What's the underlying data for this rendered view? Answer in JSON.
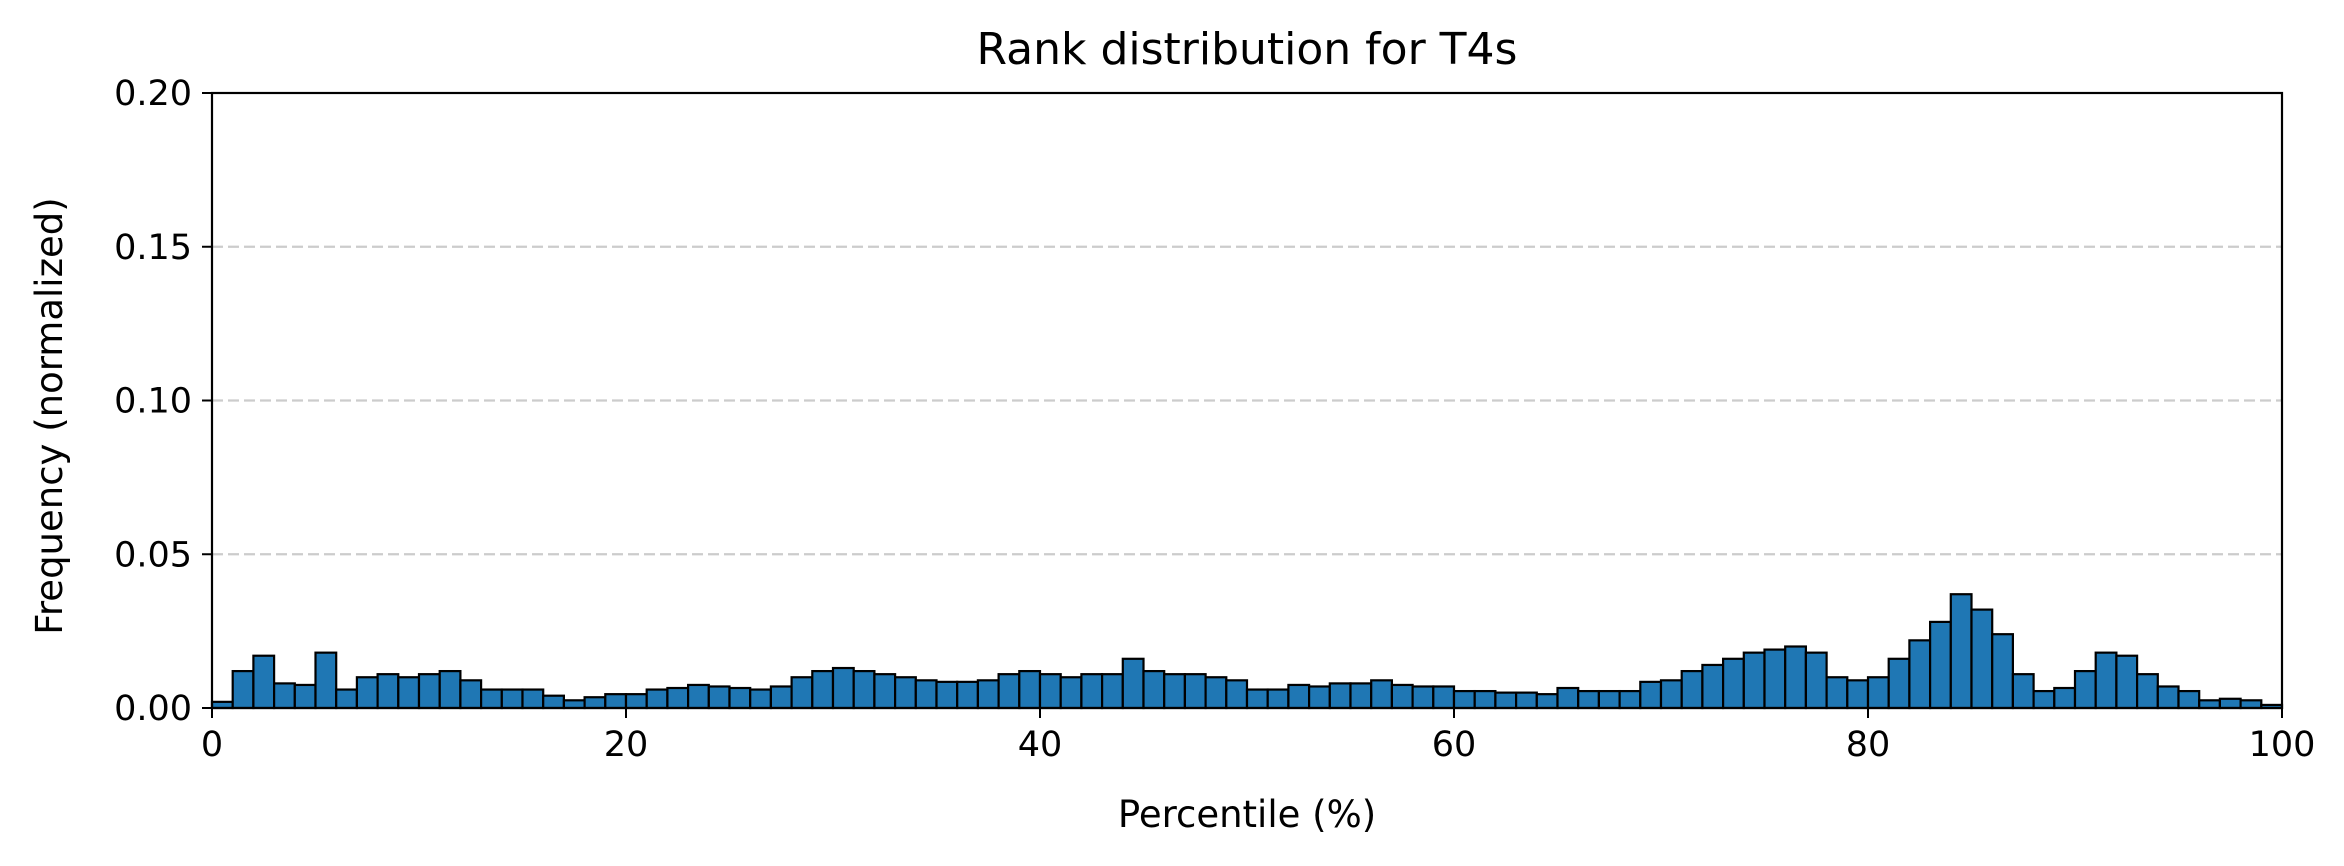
{
  "chart_data": {
    "type": "bar",
    "title": "Rank distribution for T4s",
    "xlabel": "Percentile (%)",
    "ylabel": "Frequency (normalized)",
    "xlim": [
      0,
      100
    ],
    "ylim": [
      0,
      0.2
    ],
    "x_ticks": [
      0,
      20,
      40,
      60,
      80,
      100
    ],
    "x_tick_labels": [
      "0",
      "20",
      "40",
      "60",
      "80",
      "100"
    ],
    "y_ticks": [
      0.0,
      0.05,
      0.1,
      0.15,
      0.2
    ],
    "y_tick_labels": [
      "0.00",
      "0.05",
      "0.10",
      "0.15",
      "0.20"
    ],
    "grid": "y-dashed",
    "bar_color": "#1f77b4",
    "bin_width": 1,
    "bin_starts": [
      0,
      1,
      2,
      3,
      4,
      5,
      6,
      7,
      8,
      9,
      10,
      11,
      12,
      13,
      14,
      15,
      16,
      17,
      18,
      19,
      20,
      21,
      22,
      23,
      24,
      25,
      26,
      27,
      28,
      29,
      30,
      31,
      32,
      33,
      34,
      35,
      36,
      37,
      38,
      39,
      40,
      41,
      42,
      43,
      44,
      45,
      46,
      47,
      48,
      49,
      50,
      51,
      52,
      53,
      54,
      55,
      56,
      57,
      58,
      59,
      60,
      61,
      62,
      63,
      64,
      65,
      66,
      67,
      68,
      69,
      70,
      71,
      72,
      73,
      74,
      75,
      76,
      77,
      78,
      79,
      80,
      81,
      82,
      83,
      84,
      85,
      86,
      87,
      88,
      89,
      90,
      91,
      92,
      93,
      94,
      95,
      96,
      97,
      98,
      99
    ],
    "values": [
      0.002,
      0.012,
      0.017,
      0.008,
      0.0075,
      0.018,
      0.006,
      0.01,
      0.011,
      0.01,
      0.011,
      0.012,
      0.009,
      0.006,
      0.006,
      0.006,
      0.004,
      0.0025,
      0.0035,
      0.0045,
      0.0045,
      0.006,
      0.0065,
      0.0075,
      0.007,
      0.0065,
      0.006,
      0.007,
      0.01,
      0.012,
      0.013,
      0.012,
      0.011,
      0.01,
      0.009,
      0.0085,
      0.0085,
      0.009,
      0.011,
      0.012,
      0.011,
      0.01,
      0.011,
      0.011,
      0.016,
      0.012,
      0.011,
      0.011,
      0.01,
      0.009,
      0.006,
      0.006,
      0.0075,
      0.007,
      0.008,
      0.008,
      0.009,
      0.0075,
      0.007,
      0.007,
      0.0055,
      0.0055,
      0.005,
      0.005,
      0.0045,
      0.0065,
      0.0055,
      0.0055,
      0.0055,
      0.0085,
      0.009,
      0.012,
      0.014,
      0.016,
      0.018,
      0.019,
      0.02,
      0.018,
      0.01,
      0.009,
      0.01,
      0.016,
      0.022,
      0.028,
      0.037,
      0.032,
      0.024,
      0.011,
      0.0055,
      0.0065,
      0.012,
      0.018,
      0.017,
      0.011,
      0.007,
      0.0055,
      0.0025,
      0.003,
      0.0025,
      0.001
    ]
  }
}
